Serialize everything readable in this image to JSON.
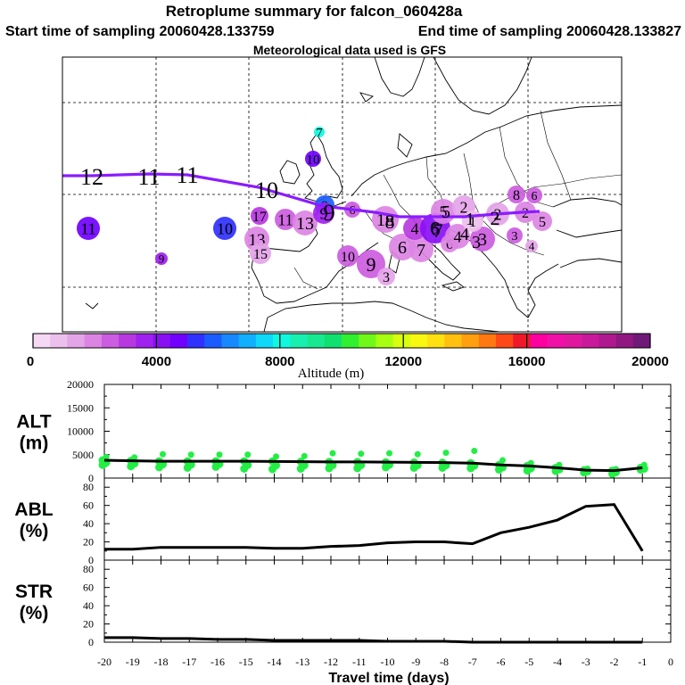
{
  "header": {
    "title": "Retroplume summary for falcon_060428a",
    "start": "Start time of sampling 20060428.133759",
    "end": "End time of sampling 20060428.133827",
    "met": "Meteorological data used is GFS"
  },
  "colorbar": {
    "label": "Altitude (m)",
    "ticks": [
      "0",
      "4000",
      "8000",
      "12000",
      "16000",
      "20000"
    ],
    "min": 0,
    "max": 20000,
    "colors": [
      "#f4d8f4",
      "#ecc0ec",
      "#e4a4e8",
      "#dc84e4",
      "#cc5ce0",
      "#b838e0",
      "#a020f0",
      "#8a10f4",
      "#7000ff",
      "#3030ff",
      "#1a5cff",
      "#1888ff",
      "#10b0ff",
      "#10d8f8",
      "#10f8e0",
      "#18f0b0",
      "#18e890",
      "#10e070",
      "#30f030",
      "#70f818",
      "#a8ff10",
      "#d8ff10",
      "#f8f810",
      "#ffe010",
      "#ffc010",
      "#ffa010",
      "#ff7810",
      "#ff4818",
      "#f01828",
      "#ff00a0",
      "#f010a8",
      "#e018a0",
      "#c8189c",
      "#b01890",
      "#901880",
      "#701a78"
    ]
  },
  "map": {
    "trajectory_labels": [
      "12",
      "11",
      "11",
      "10",
      "9",
      "8",
      "7",
      "6",
      "5",
      "4",
      "3",
      "2",
      "1"
    ],
    "clusters": [
      {
        "label": "7",
        "altitude": 7800
      },
      {
        "label": "10",
        "altitude": 4600
      },
      {
        "label": "9",
        "altitude": 6000
      },
      {
        "label": "6",
        "altitude": 2400
      },
      {
        "label": "11",
        "altitude": 4700
      },
      {
        "label": "10",
        "altitude": 5200
      },
      {
        "label": "9",
        "altitude": 3800
      },
      {
        "label": "17",
        "altitude": 3000
      },
      {
        "label": "11",
        "altitude": 2500
      },
      {
        "label": "13",
        "altitude": 2100
      },
      {
        "label": "13",
        "altitude": 1800
      },
      {
        "label": "15",
        "altitude": 1300
      },
      {
        "label": "9",
        "altitude": 3600
      },
      {
        "label": "18",
        "altitude": 2200
      },
      {
        "label": "10",
        "altitude": 2300
      },
      {
        "label": "9",
        "altitude": 2700
      },
      {
        "label": "3",
        "altitude": 1500
      },
      {
        "label": "6",
        "altitude": 2000
      },
      {
        "label": "7",
        "altitude": 1900
      },
      {
        "label": "4",
        "altitude": 3000
      },
      {
        "label": "6",
        "altitude": 4200
      },
      {
        "label": "6",
        "altitude": 2000
      },
      {
        "label": "5",
        "altitude": 2000
      },
      {
        "label": "4",
        "altitude": 2200
      },
      {
        "label": "3",
        "altitude": 2400
      },
      {
        "label": "2",
        "altitude": 1400
      },
      {
        "label": "1",
        "altitude": 1000
      },
      {
        "label": "2",
        "altitude": 1600
      },
      {
        "label": "8",
        "altitude": 2500
      },
      {
        "label": "6",
        "altitude": 2400
      },
      {
        "label": "2",
        "altitude": 2000
      },
      {
        "label": "5",
        "altitude": 2200
      },
      {
        "label": "3",
        "altitude": 2600
      },
      {
        "label": "4",
        "altitude": 1600
      }
    ]
  },
  "chart_data": [
    {
      "type": "line",
      "panel": "ALT",
      "ylabel": [
        "ALT",
        "(m)"
      ],
      "ylim": [
        0,
        20000
      ],
      "yticks": [
        "0",
        "5000",
        "10000",
        "15000",
        "20000"
      ],
      "x": [
        -20,
        -19,
        -18,
        -17,
        -16,
        -15,
        -14,
        -13,
        -12,
        -11,
        -10,
        -9,
        -8,
        -7,
        -6,
        -5,
        -4,
        -3,
        -2,
        -1
      ],
      "mean": [
        3800,
        3700,
        3600,
        3600,
        3600,
        3600,
        3550,
        3500,
        3450,
        3450,
        3400,
        3350,
        3300,
        3200,
        2800,
        2600,
        2200,
        1700,
        1600,
        2200
      ],
      "scatter_low": [
        2800,
        2500,
        2300,
        2200,
        2400,
        2000,
        1900,
        2000,
        2100,
        2100,
        2300,
        2200,
        2200,
        2100,
        1800,
        1600,
        1500,
        1200,
        900,
        1800
      ],
      "scatter_high": [
        4500,
        4400,
        5100,
        5000,
        5000,
        5000,
        4600,
        4700,
        5300,
        5200,
        5300,
        5100,
        5400,
        5800,
        3800,
        3200,
        2800,
        2000,
        1900,
        2800
      ]
    },
    {
      "type": "line",
      "panel": "ABL",
      "ylabel": [
        "ABL",
        "(%)"
      ],
      "ylim": [
        0,
        90
      ],
      "yticks": [
        "0",
        "20",
        "40",
        "60",
        "80"
      ],
      "x": [
        -20,
        -19,
        -18,
        -17,
        -16,
        -15,
        -14,
        -13,
        -12,
        -11,
        -10,
        -9,
        -8,
        -7,
        -6,
        -5,
        -4,
        -3,
        -2,
        -1
      ],
      "values": [
        12,
        12,
        14,
        14,
        14,
        14,
        13,
        13,
        15,
        16,
        19,
        20,
        20,
        18,
        30,
        36,
        44,
        59,
        61,
        10
      ]
    },
    {
      "type": "line",
      "panel": "STR",
      "ylabel": [
        "STR",
        "(%)"
      ],
      "ylim": [
        0,
        90
      ],
      "yticks": [
        "0",
        "20",
        "40",
        "60",
        "80"
      ],
      "x": [
        -20,
        -19,
        -18,
        -17,
        -16,
        -15,
        -14,
        -13,
        -12,
        -11,
        -10,
        -9,
        -8,
        -7,
        -6,
        -5,
        -4,
        -3,
        -2,
        -1
      ],
      "values": [
        5,
        5,
        4,
        4,
        3,
        3,
        2,
        2,
        2,
        2,
        1,
        1,
        1,
        0,
        0,
        0,
        0,
        0,
        0,
        0
      ]
    }
  ],
  "xaxis": {
    "label": "Travel time (days)",
    "ticks": [
      "-20",
      "-19",
      "-18",
      "-17",
      "-16",
      "-15",
      "-14",
      "-13",
      "-12",
      "-11",
      "-10",
      "-9",
      "-8",
      "-7",
      "-6",
      "-5",
      "-4",
      "-3",
      "-2",
      "-1",
      "0"
    ]
  }
}
